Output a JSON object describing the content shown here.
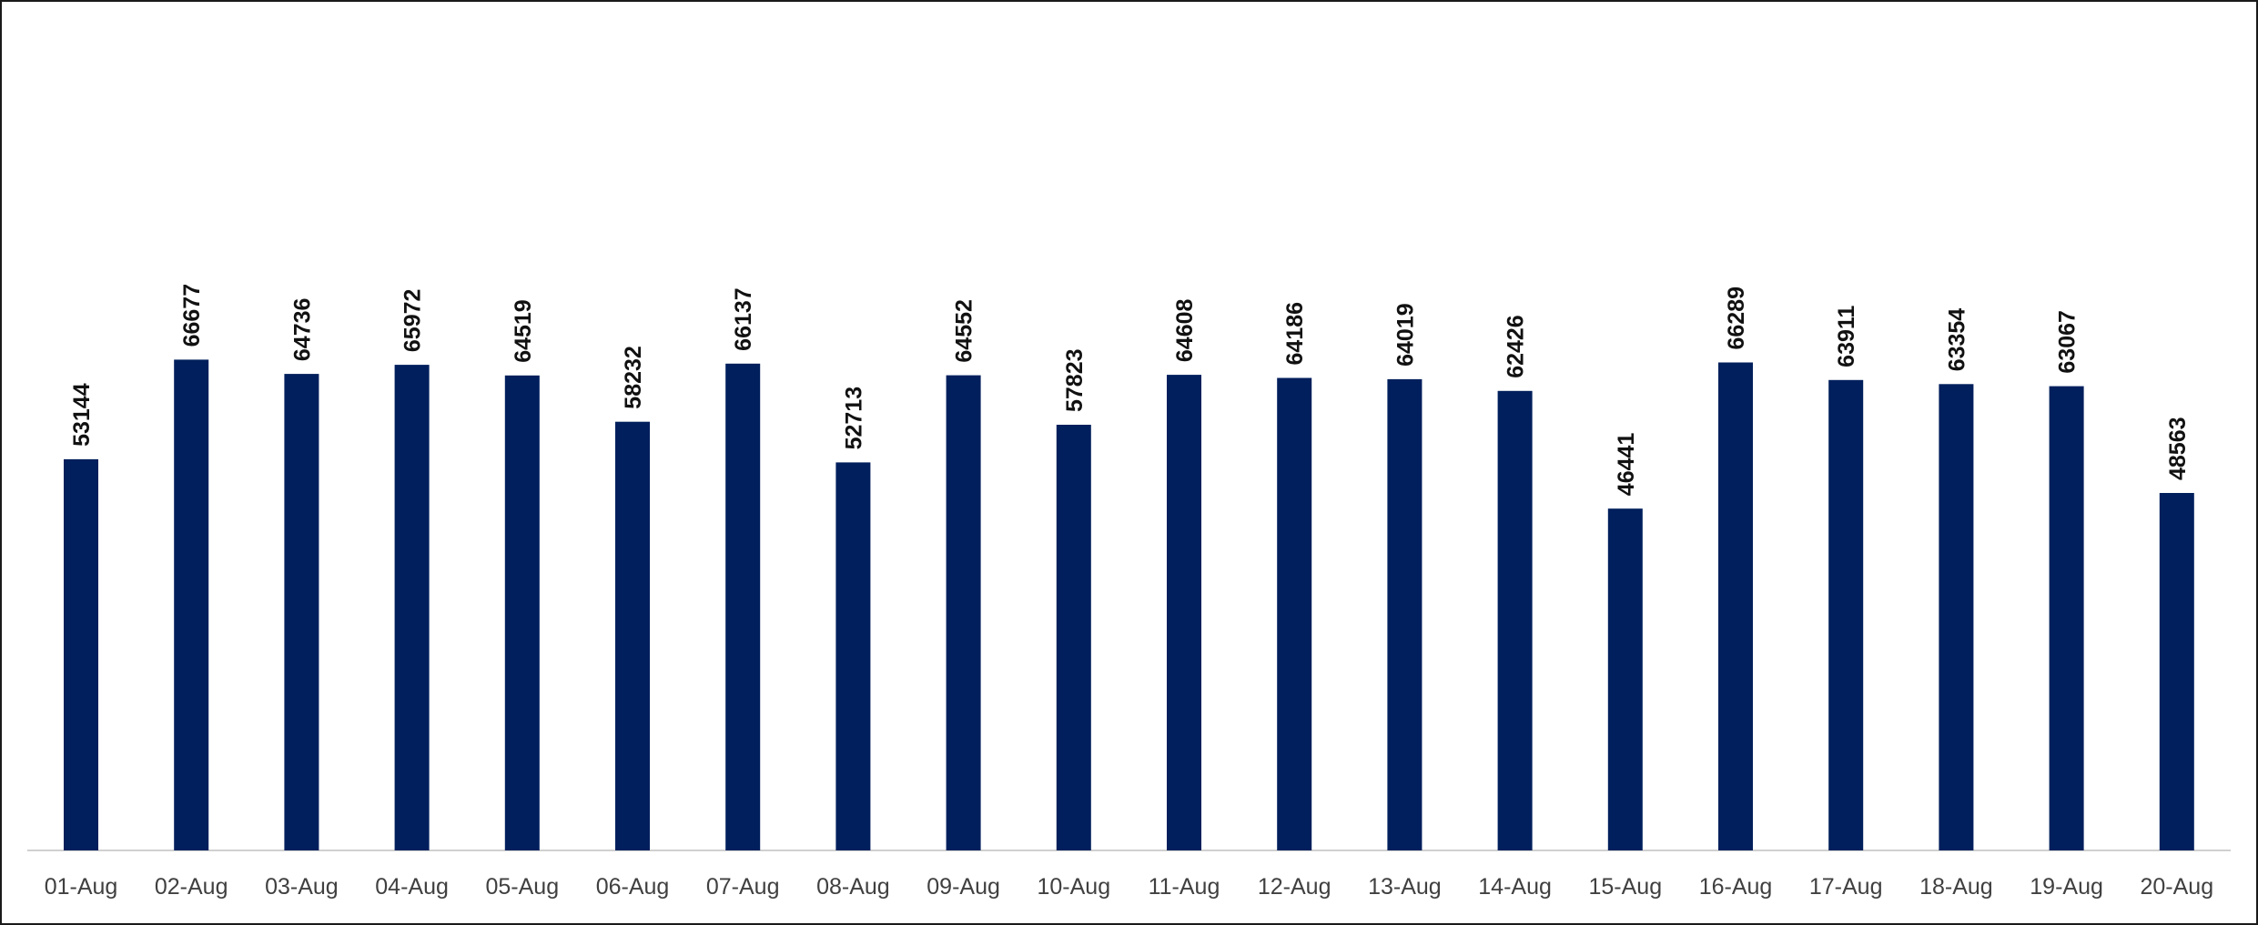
{
  "chart_data": {
    "type": "bar",
    "title": "",
    "xlabel": "",
    "ylabel": "",
    "ylim": [
      0,
      70000
    ],
    "grid": false,
    "legend": "none",
    "bar_color": "#001f5c",
    "axis_color": "#d0d0d0",
    "categories": [
      "01-Aug",
      "02-Aug",
      "03-Aug",
      "04-Aug",
      "05-Aug",
      "06-Aug",
      "07-Aug",
      "08-Aug",
      "09-Aug",
      "10-Aug",
      "11-Aug",
      "12-Aug",
      "13-Aug",
      "14-Aug",
      "15-Aug",
      "16-Aug",
      "17-Aug",
      "18-Aug",
      "19-Aug",
      "20-Aug"
    ],
    "values": [
      53144,
      66677,
      64736,
      65972,
      64519,
      58232,
      66137,
      52713,
      64552,
      57823,
      64608,
      64186,
      64019,
      62426,
      46441,
      66289,
      63911,
      63354,
      63067,
      48563
    ]
  }
}
